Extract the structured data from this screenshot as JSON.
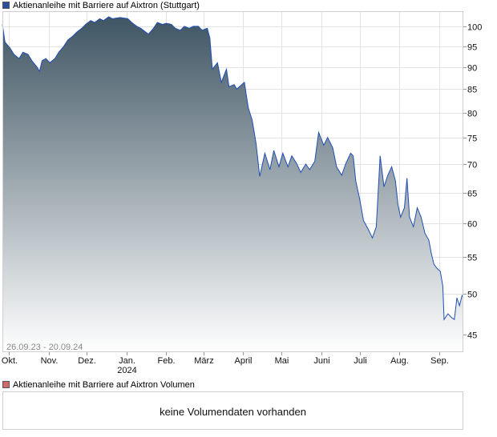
{
  "legend": {
    "price_label": "Aktienanleihe mit Barriere auf Aixtron  (Stuttgart)",
    "price_color": "#2b4f9e",
    "volume_label": "Aktienanleihe mit Barriere auf Aixtron  Volumen",
    "volume_color": "#d06a6a"
  },
  "date_range": "26.09.23 - 20.09.24",
  "volume": {
    "message": "keine Volumendaten vorhanden"
  },
  "chart_data": {
    "type": "area",
    "y_scale": "log",
    "ylim": [
      43,
      104
    ],
    "xlim": [
      "2023-09-26",
      "2024-09-20"
    ],
    "grid": true,
    "line_color": "#1f4fb4",
    "fill_top_color": "#3f5563",
    "fill_bottom_color": "#ffffff",
    "yticks": [
      100,
      95,
      90,
      85,
      80,
      75,
      70,
      65,
      60,
      55,
      50,
      45
    ],
    "xticks": [
      {
        "label": "Okt.",
        "date": "2023-10-01"
      },
      {
        "label": "Nov.",
        "date": "2023-11-01"
      },
      {
        "label": "Dez.",
        "date": "2023-12-01"
      },
      {
        "label": "Jan.",
        "date": "2024-01-01",
        "sublabel": "2024"
      },
      {
        "label": "Feb.",
        "date": "2024-02-01"
      },
      {
        "label": "März",
        "date": "2024-03-01"
      },
      {
        "label": "April",
        "date": "2024-04-01"
      },
      {
        "label": "Mai",
        "date": "2024-05-01"
      },
      {
        "label": "Juni",
        "date": "2024-06-01"
      },
      {
        "label": "Juli",
        "date": "2024-07-01"
      },
      {
        "label": "Aug.",
        "date": "2024-08-01"
      },
      {
        "label": "Sep.",
        "date": "2024-09-01"
      }
    ],
    "series": [
      {
        "points": [
          [
            "2023-09-26",
            100.5
          ],
          [
            "2023-09-28",
            96.0
          ],
          [
            "2023-10-02",
            94.5
          ],
          [
            "2023-10-05",
            93.0
          ],
          [
            "2023-10-09",
            92.0
          ],
          [
            "2023-10-12",
            93.5
          ],
          [
            "2023-10-16",
            93.0
          ],
          [
            "2023-10-19",
            91.5
          ],
          [
            "2023-10-23",
            90.0
          ],
          [
            "2023-10-25",
            89.0
          ],
          [
            "2023-10-27",
            91.5
          ],
          [
            "2023-10-30",
            92.0
          ],
          [
            "2023-11-02",
            91.0
          ],
          [
            "2023-11-06",
            92.0
          ],
          [
            "2023-11-09",
            93.5
          ],
          [
            "2023-11-13",
            95.0
          ],
          [
            "2023-11-16",
            96.5
          ],
          [
            "2023-11-20",
            97.5
          ],
          [
            "2023-11-23",
            98.5
          ],
          [
            "2023-11-27",
            99.5
          ],
          [
            "2023-11-30",
            100.5
          ],
          [
            "2023-12-04",
            101.5
          ],
          [
            "2023-12-07",
            101.0
          ],
          [
            "2023-12-11",
            102.0
          ],
          [
            "2023-12-14",
            101.5
          ],
          [
            "2023-12-18",
            102.5
          ],
          [
            "2023-12-21",
            102.0
          ],
          [
            "2023-12-27",
            102.3
          ],
          [
            "2024-01-02",
            102.0
          ],
          [
            "2024-01-05",
            101.0
          ],
          [
            "2024-01-09",
            100.0
          ],
          [
            "2024-01-12",
            99.5
          ],
          [
            "2024-01-16",
            98.5
          ],
          [
            "2024-01-18",
            98.0
          ],
          [
            "2024-01-22",
            99.5
          ],
          [
            "2024-01-25",
            101.0
          ],
          [
            "2024-01-29",
            100.5
          ],
          [
            "2024-02-01",
            100.8
          ],
          [
            "2024-02-05",
            100.5
          ],
          [
            "2024-02-08",
            99.5
          ],
          [
            "2024-02-12",
            99.0
          ],
          [
            "2024-02-15",
            100.0
          ],
          [
            "2024-02-19",
            99.5
          ],
          [
            "2024-02-22",
            100.0
          ],
          [
            "2024-02-26",
            100.0
          ],
          [
            "2024-02-29",
            99.0
          ],
          [
            "2024-03-04",
            99.5
          ],
          [
            "2024-03-06",
            97.0
          ],
          [
            "2024-03-08",
            89.5
          ],
          [
            "2024-03-12",
            91.0
          ],
          [
            "2024-03-15",
            86.5
          ],
          [
            "2024-03-19",
            89.5
          ],
          [
            "2024-03-21",
            85.5
          ],
          [
            "2024-03-25",
            86.0
          ],
          [
            "2024-03-27",
            85.0
          ],
          [
            "2024-04-02",
            86.5
          ],
          [
            "2024-04-05",
            81.0
          ],
          [
            "2024-04-08",
            78.5
          ],
          [
            "2024-04-11",
            74.0
          ],
          [
            "2024-04-14",
            67.8
          ],
          [
            "2024-04-18",
            72.0
          ],
          [
            "2024-04-22",
            69.0
          ],
          [
            "2024-04-25",
            72.5
          ],
          [
            "2024-04-29",
            69.5
          ],
          [
            "2024-05-02",
            72.0
          ],
          [
            "2024-05-06",
            69.5
          ],
          [
            "2024-05-09",
            71.5
          ],
          [
            "2024-05-13",
            70.0
          ],
          [
            "2024-05-16",
            68.5
          ],
          [
            "2024-05-20",
            70.0
          ],
          [
            "2024-05-23",
            69.0
          ],
          [
            "2024-05-27",
            70.5
          ],
          [
            "2024-05-30",
            76.0
          ],
          [
            "2024-06-03",
            73.5
          ],
          [
            "2024-06-06",
            75.0
          ],
          [
            "2024-06-10",
            73.0
          ],
          [
            "2024-06-13",
            69.5
          ],
          [
            "2024-06-17",
            68.0
          ],
          [
            "2024-06-20",
            70.0
          ],
          [
            "2024-06-24",
            72.0
          ],
          [
            "2024-06-26",
            71.5
          ],
          [
            "2024-06-28",
            67.0
          ],
          [
            "2024-07-01",
            64.0
          ],
          [
            "2024-07-04",
            60.5
          ],
          [
            "2024-07-08",
            59.0
          ],
          [
            "2024-07-11",
            57.8
          ],
          [
            "2024-07-14",
            59.5
          ],
          [
            "2024-07-17",
            71.5
          ],
          [
            "2024-07-20",
            66.0
          ],
          [
            "2024-07-23",
            68.0
          ],
          [
            "2024-07-26",
            69.5
          ],
          [
            "2024-07-29",
            67.0
          ],
          [
            "2024-07-31",
            63.0
          ],
          [
            "2024-08-02",
            61.0
          ],
          [
            "2024-08-05",
            62.5
          ],
          [
            "2024-08-07",
            67.5
          ],
          [
            "2024-08-09",
            61.0
          ],
          [
            "2024-08-12",
            59.5
          ],
          [
            "2024-08-15",
            62.5
          ],
          [
            "2024-08-18",
            61.0
          ],
          [
            "2024-08-21",
            58.5
          ],
          [
            "2024-08-24",
            57.5
          ],
          [
            "2024-08-26",
            55.5
          ],
          [
            "2024-08-28",
            54.0
          ],
          [
            "2024-08-30",
            53.5
          ],
          [
            "2024-09-02",
            53.0
          ],
          [
            "2024-09-04",
            51.0
          ],
          [
            "2024-09-05",
            46.8
          ],
          [
            "2024-09-08",
            47.5
          ],
          [
            "2024-09-11",
            47.0
          ],
          [
            "2024-09-13",
            46.8
          ],
          [
            "2024-09-15",
            49.5
          ],
          [
            "2024-09-17",
            48.5
          ],
          [
            "2024-09-19",
            49.8
          ],
          [
            "2024-09-20",
            49.5
          ]
        ]
      }
    ]
  }
}
